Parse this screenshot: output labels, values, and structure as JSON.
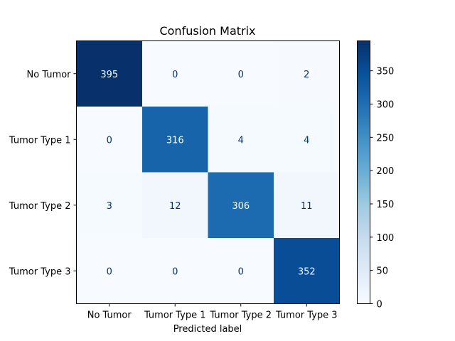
{
  "chart_data": {
    "type": "heatmap",
    "title": "Confusion Matrix",
    "xlabel": "Predicted label",
    "ylabel": "",
    "row_labels": [
      "No Tumor",
      "Tumor Type 1",
      "Tumor Type 2",
      "Tumor Type 3"
    ],
    "col_labels": [
      "No Tumor",
      "Tumor Type 1",
      "Tumor Type 2",
      "Tumor Type 3"
    ],
    "matrix": [
      [
        395,
        0,
        0,
        2
      ],
      [
        0,
        316,
        4,
        4
      ],
      [
        3,
        12,
        306,
        11
      ],
      [
        0,
        0,
        0,
        352
      ]
    ],
    "colormap": "Blues",
    "colorbar": {
      "range": [
        0,
        395
      ],
      "ticks": [
        0,
        50,
        100,
        150,
        200,
        250,
        300,
        350
      ]
    }
  }
}
